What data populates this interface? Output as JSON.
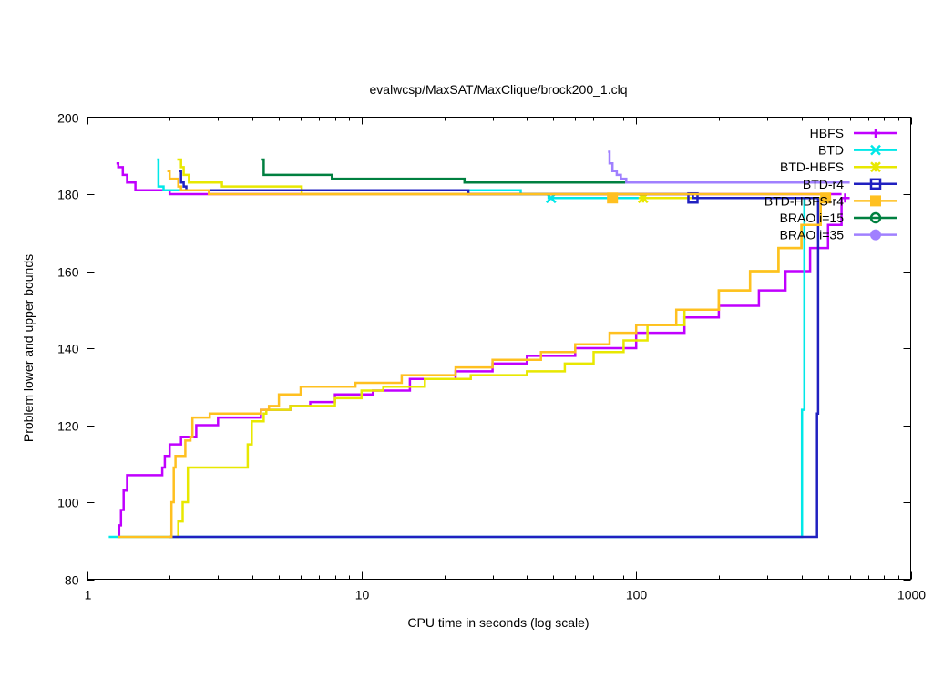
{
  "chart_data": {
    "type": "line",
    "title": "evalwcsp/MaxSAT/MaxClique/brock200_1.clq",
    "xlabel": "CPU time in seconds (log scale)",
    "ylabel": "Problem lower and upper bounds",
    "xscale": "log",
    "xlim": [
      1,
      1000
    ],
    "ylim": [
      80,
      200
    ],
    "xticks": [
      1,
      10,
      100,
      1000
    ],
    "xtick_labels": [
      "1",
      "10",
      "100",
      "1000"
    ],
    "yticks": [
      80,
      100,
      120,
      140,
      160,
      180,
      200
    ],
    "ytick_labels": [
      "80",
      "100",
      "120",
      "140",
      "160",
      "180",
      "200"
    ],
    "grid": false,
    "legend_position": "top-right",
    "series": [
      {
        "name": "HBFS",
        "color": "#c000ff",
        "marker": "plus",
        "upper": [
          [
            1.28,
            188
          ],
          [
            1.3,
            187
          ],
          [
            1.35,
            185
          ],
          [
            1.4,
            183
          ],
          [
            1.5,
            181
          ],
          [
            1.95,
            181
          ],
          [
            2.0,
            180
          ],
          [
            560,
            180
          ]
        ],
        "lower": [
          [
            1.29,
            91
          ],
          [
            1.31,
            94
          ],
          [
            1.33,
            98
          ],
          [
            1.36,
            103
          ],
          [
            1.4,
            107
          ],
          [
            1.88,
            109
          ],
          [
            1.92,
            112
          ],
          [
            2.0,
            115
          ],
          [
            2.2,
            117
          ],
          [
            2.5,
            120
          ],
          [
            3.0,
            122
          ],
          [
            4.3,
            124
          ],
          [
            5.5,
            125
          ],
          [
            6.5,
            126
          ],
          [
            8,
            128
          ],
          [
            11,
            129
          ],
          [
            15,
            132
          ],
          [
            22,
            134
          ],
          [
            30,
            136
          ],
          [
            40,
            138
          ],
          [
            60,
            140
          ],
          [
            100,
            144
          ],
          [
            150,
            148
          ],
          [
            200,
            151
          ],
          [
            280,
            155
          ],
          [
            350,
            160
          ],
          [
            430,
            166
          ],
          [
            500,
            172
          ],
          [
            560,
            179
          ]
        ],
        "markers": [
          [
            577,
            179
          ]
        ]
      },
      {
        "name": "BTD",
        "color": "#00e8e8",
        "marker": "cross",
        "upper": [
          [
            1.8,
            189
          ],
          [
            1.82,
            182
          ],
          [
            1.9,
            181
          ],
          [
            37,
            181
          ],
          [
            38,
            180
          ],
          [
            48,
            179
          ],
          [
            410,
            179
          ]
        ],
        "lower": [
          [
            1.2,
            91
          ],
          [
            400,
            91
          ],
          [
            402,
            124
          ],
          [
            410,
            179
          ]
        ],
        "markers": [
          [
            49,
            179
          ]
        ]
      },
      {
        "name": "BTD-HBFS",
        "color": "#e8e800",
        "marker": "star",
        "upper": [
          [
            2.13,
            189
          ],
          [
            2.2,
            187
          ],
          [
            2.25,
            185
          ],
          [
            2.35,
            183
          ],
          [
            3.1,
            182
          ],
          [
            6,
            182
          ],
          [
            6.05,
            180
          ],
          [
            106,
            179
          ],
          [
            470,
            179
          ]
        ],
        "lower": [
          [
            2.1,
            91
          ],
          [
            2.15,
            95
          ],
          [
            2.23,
            100
          ],
          [
            2.33,
            109
          ],
          [
            3.75,
            109
          ],
          [
            3.85,
            115
          ],
          [
            3.98,
            121
          ],
          [
            4.4,
            123
          ],
          [
            4.5,
            124
          ],
          [
            5.5,
            125
          ],
          [
            8,
            127
          ],
          [
            10,
            129
          ],
          [
            12,
            130
          ],
          [
            17,
            132
          ],
          [
            25,
            133
          ],
          [
            40,
            134
          ],
          [
            55,
            136
          ],
          [
            70,
            139
          ],
          [
            90,
            142
          ],
          [
            110,
            146
          ],
          [
            150,
            150
          ],
          [
            200,
            155
          ],
          [
            260,
            160
          ],
          [
            330,
            166
          ],
          [
            400,
            172
          ],
          [
            470,
            178
          ]
        ],
        "markers": [
          [
            106,
            179
          ]
        ]
      },
      {
        "name": "BTD-r4",
        "color": "#2020c0",
        "marker": "box",
        "upper": [
          [
            2.16,
            186
          ],
          [
            2.2,
            183
          ],
          [
            2.25,
            182
          ],
          [
            2.3,
            181
          ],
          [
            24.3,
            181
          ],
          [
            24.5,
            180
          ],
          [
            161,
            179
          ],
          [
            460,
            179
          ]
        ],
        "lower": [
          [
            2.0,
            91
          ],
          [
            455,
            91
          ],
          [
            456,
            123
          ],
          [
            460,
            179
          ]
        ],
        "markers": [
          [
            161,
            179
          ]
        ]
      },
      {
        "name": "BTD-HBFS-r4",
        "color": "#ffc020",
        "marker": "filled-box",
        "upper": [
          [
            1.96,
            186
          ],
          [
            2.0,
            184
          ],
          [
            2.15,
            182
          ],
          [
            2.2,
            181
          ],
          [
            2.78,
            180
          ],
          [
            470,
            180
          ]
        ],
        "lower": [
          [
            1.3,
            91
          ],
          [
            2.0,
            91
          ],
          [
            2.03,
            100
          ],
          [
            2.07,
            109
          ],
          [
            2.1,
            112
          ],
          [
            2.28,
            116
          ],
          [
            2.38,
            117
          ],
          [
            2.42,
            122
          ],
          [
            2.8,
            123
          ],
          [
            4.3,
            124
          ],
          [
            4.6,
            125
          ],
          [
            5.0,
            128
          ],
          [
            6.0,
            130
          ],
          [
            9.5,
            131
          ],
          [
            14,
            133
          ],
          [
            22,
            135
          ],
          [
            30,
            137
          ],
          [
            45,
            139
          ],
          [
            60,
            141
          ],
          [
            80,
            144
          ],
          [
            100,
            146
          ],
          [
            140,
            150
          ],
          [
            200,
            155
          ],
          [
            260,
            160
          ],
          [
            330,
            166
          ],
          [
            400,
            172
          ],
          [
            470,
            179
          ]
        ],
        "markers": [
          [
            82,
            179
          ],
          [
            490,
            179
          ]
        ]
      },
      {
        "name": "BRAO i=15",
        "color": "#008040",
        "marker": "circle",
        "upper": [
          [
            4.33,
            189
          ],
          [
            4.4,
            185
          ],
          [
            7.8,
            184
          ],
          [
            23.7,
            183
          ],
          [
            450,
            183
          ]
        ],
        "lower": [],
        "markers": []
      },
      {
        "name": "BRAO i=35",
        "color": "#a080ff",
        "marker": "filled-circle",
        "upper": [
          [
            79,
            191
          ],
          [
            80,
            188
          ],
          [
            82,
            186
          ],
          [
            85,
            185
          ],
          [
            88,
            184
          ],
          [
            92,
            183
          ],
          [
            600,
            183
          ]
        ],
        "lower": [],
        "markers": []
      }
    ]
  }
}
